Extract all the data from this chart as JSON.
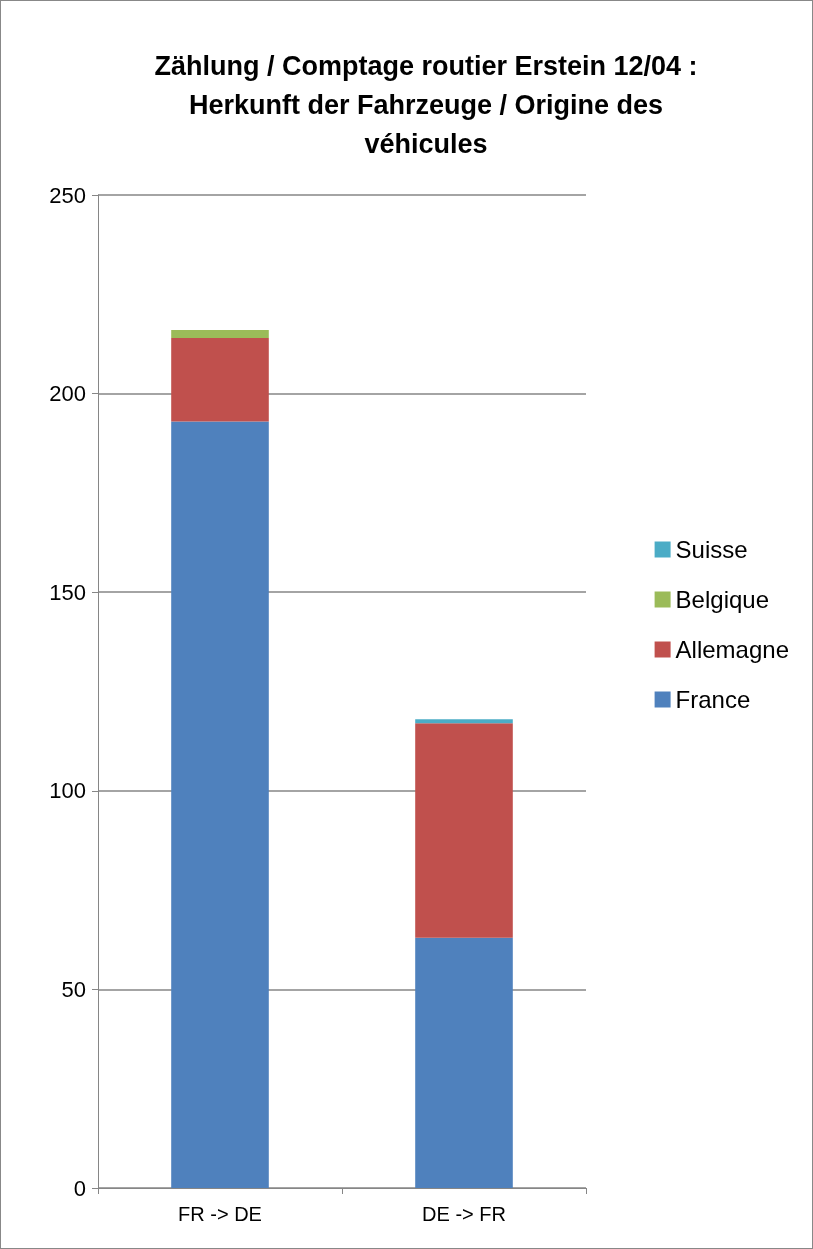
{
  "chart_data": {
    "type": "bar",
    "title": "Zählung / Comptage routier Erstein 12/04 :\nHerkunft der Fahrzeuge / Origine des\nvéhicules",
    "categories": [
      "FR -> DE",
      "DE -> FR"
    ],
    "stacked": true,
    "series": [
      {
        "name": "France",
        "color": "#4f81bd",
        "values": [
          193,
          63
        ]
      },
      {
        "name": "Allemagne",
        "color": "#c0504d",
        "values": [
          21,
          54
        ]
      },
      {
        "name": "Belgique",
        "color": "#9bbb59",
        "values": [
          2,
          0
        ]
      },
      {
        "name": "Suisse",
        "color": "#4bacc6",
        "values": [
          0,
          1
        ]
      }
    ],
    "ylim": [
      0,
      250
    ],
    "yticks": [
      0,
      50,
      100,
      150,
      200,
      250
    ],
    "grid": "y",
    "legend": "right"
  }
}
